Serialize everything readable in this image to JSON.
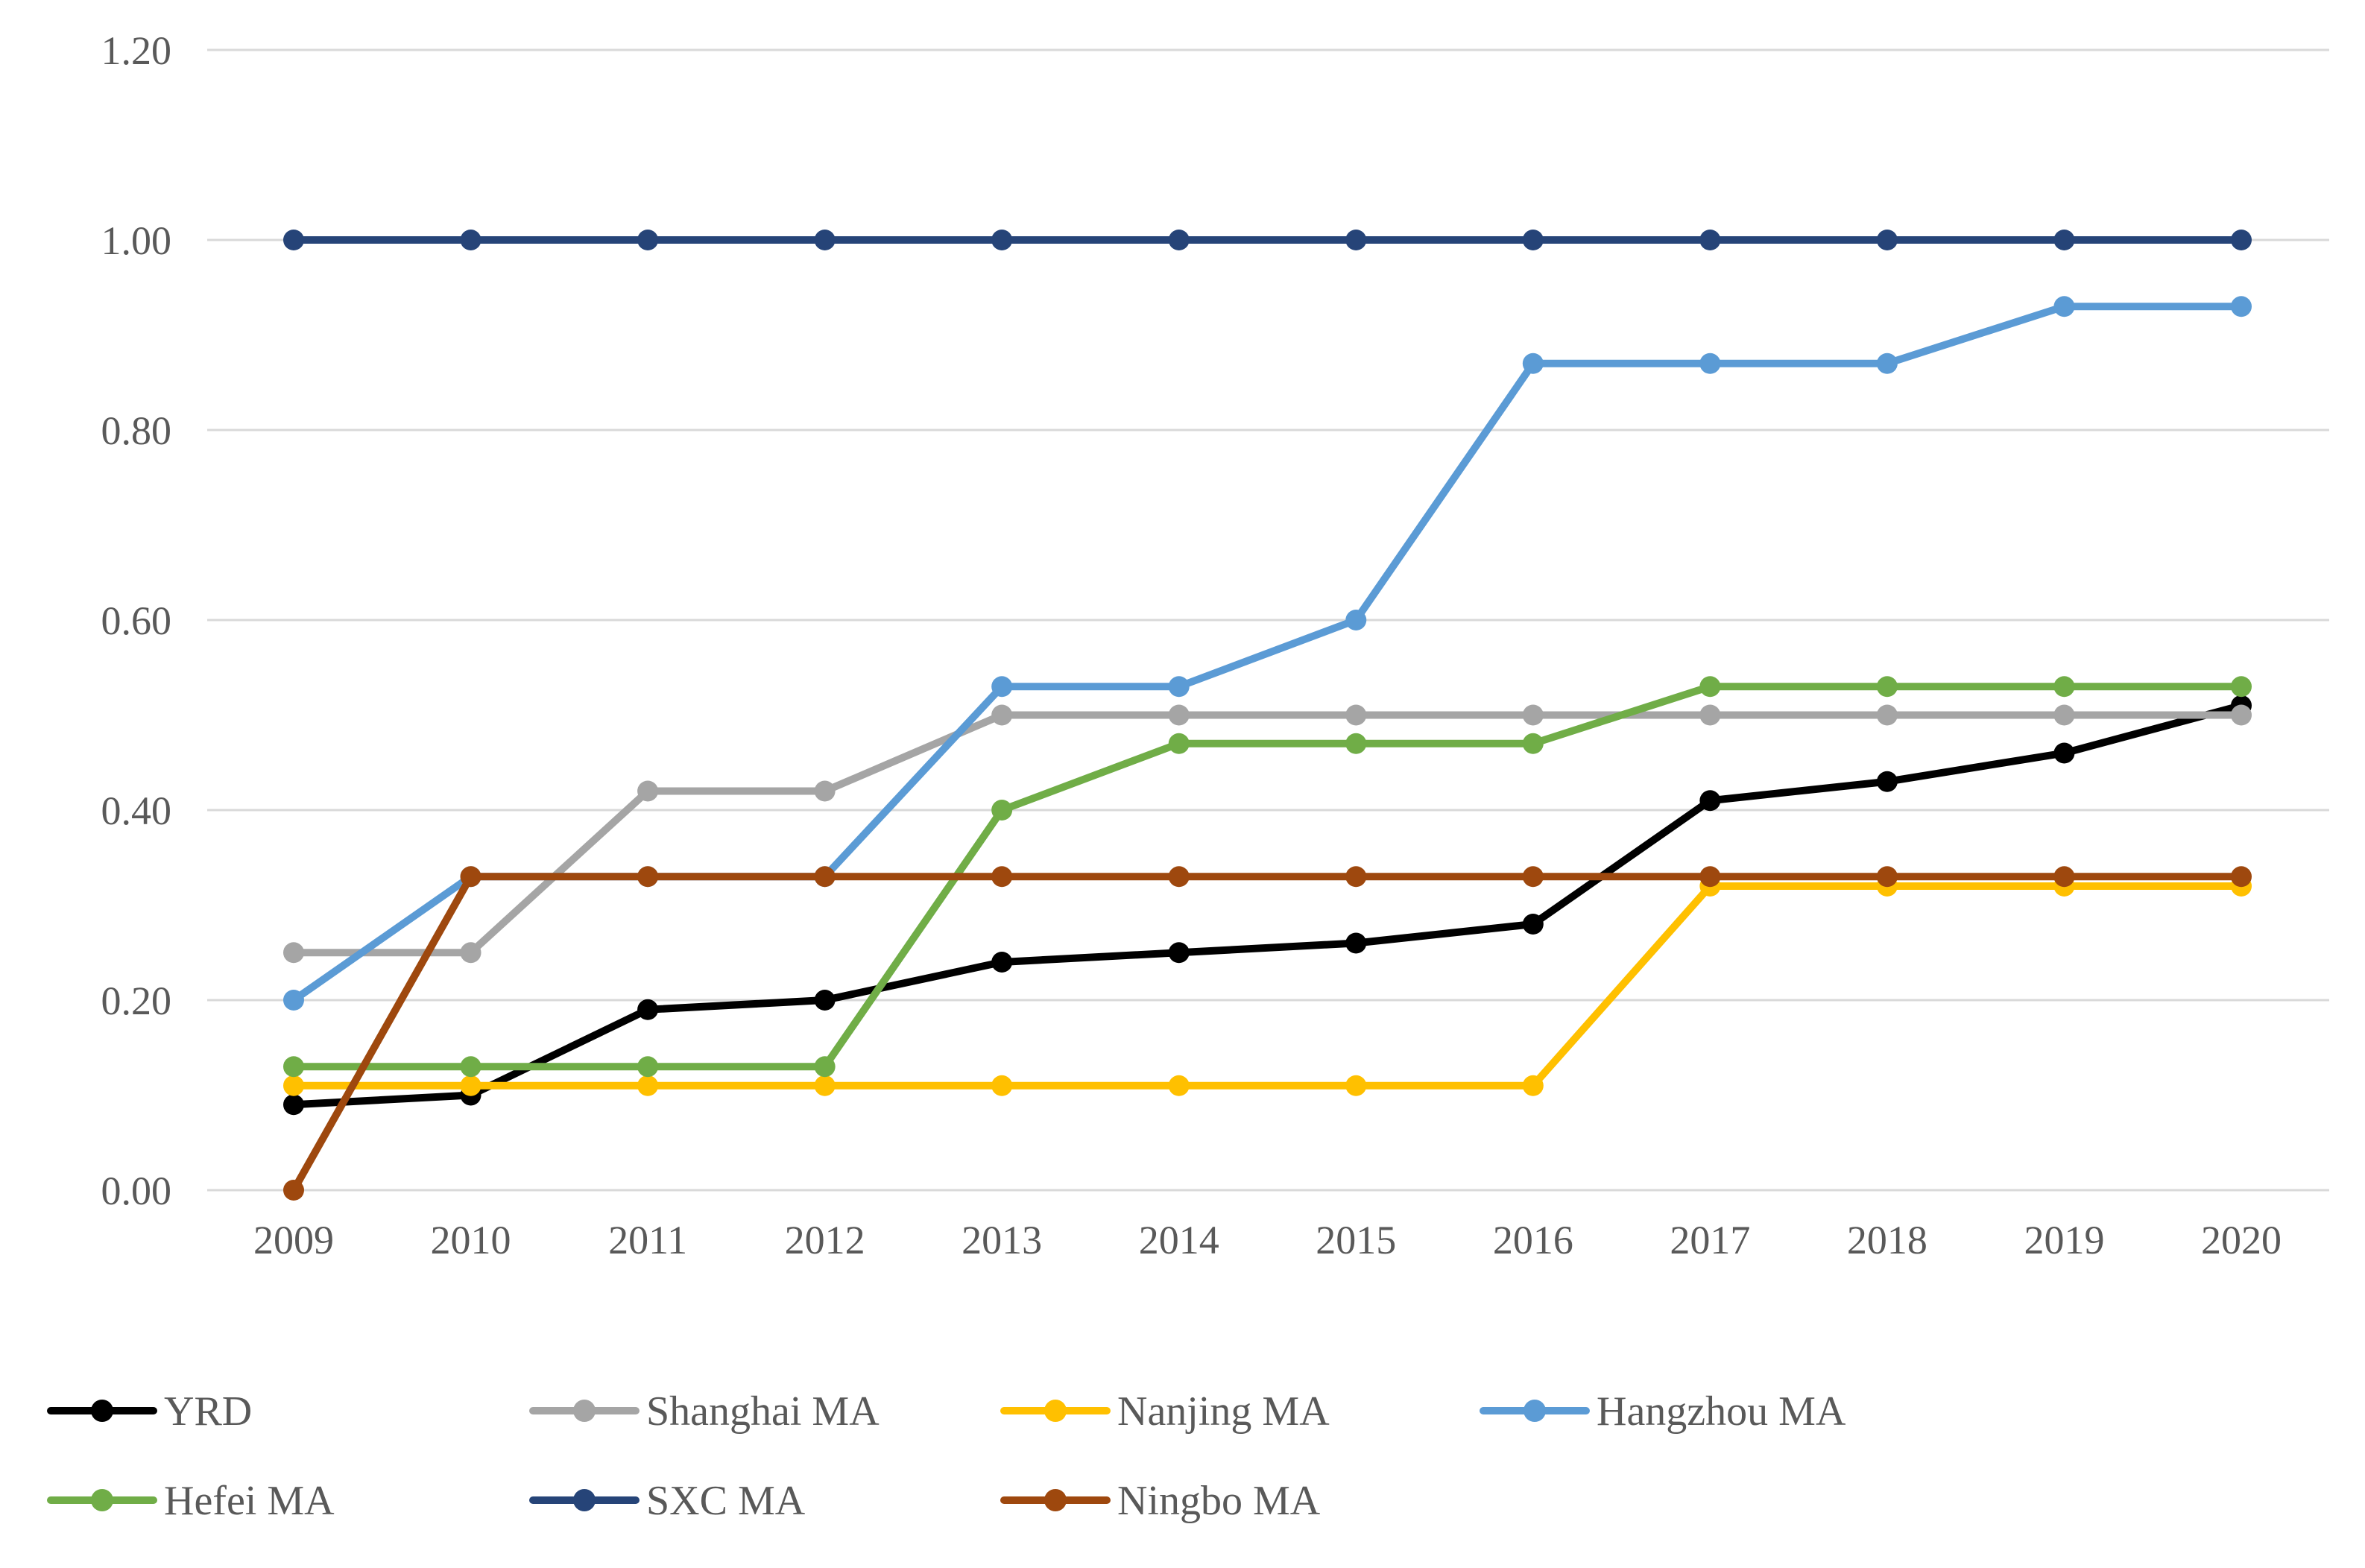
{
  "chart_data": {
    "type": "line",
    "title": "",
    "xlabel": "",
    "ylabel": "",
    "categories": [
      "2009",
      "2010",
      "2011",
      "2012",
      "2013",
      "2014",
      "2015",
      "2016",
      "2017",
      "2018",
      "2019",
      "2020"
    ],
    "series": [
      {
        "name": "YRD",
        "color": "#000000",
        "marker": "circle",
        "values": [
          0.09,
          0.1,
          0.19,
          0.2,
          0.24,
          0.25,
          0.26,
          0.28,
          0.41,
          0.43,
          0.46,
          0.51
        ]
      },
      {
        "name": "Shanghai MA",
        "color": "#A5A5A5",
        "marker": "circle",
        "values": [
          0.25,
          0.25,
          0.42,
          0.42,
          0.5,
          0.5,
          0.5,
          0.5,
          0.5,
          0.5,
          0.5,
          0.5
        ]
      },
      {
        "name": "Nanjing MA",
        "color": "#FFC000",
        "marker": "circle",
        "values": [
          0.11,
          0.11,
          0.11,
          0.11,
          0.11,
          0.11,
          0.11,
          0.11,
          0.32,
          0.32,
          0.32,
          0.32
        ]
      },
      {
        "name": "Hangzhou MA",
        "color": "#5B9BD5",
        "marker": "circle",
        "values": [
          0.2,
          0.33,
          0.33,
          0.33,
          0.53,
          0.53,
          0.6,
          0.87,
          0.87,
          0.87,
          0.93,
          0.93
        ]
      },
      {
        "name": "Hefei MA",
        "color": "#70AD47",
        "marker": "circle",
        "values": [
          0.13,
          0.13,
          0.13,
          0.13,
          0.4,
          0.47,
          0.47,
          0.47,
          0.53,
          0.53,
          0.53,
          0.53
        ]
      },
      {
        "name": "SXC MA",
        "color": "#264478",
        "marker": "circle",
        "values": [
          1.0,
          1.0,
          1.0,
          1.0,
          1.0,
          1.0,
          1.0,
          1.0,
          1.0,
          1.0,
          1.0,
          1.0
        ]
      },
      {
        "name": "Ningbo MA",
        "color": "#9E480E",
        "marker": "circle",
        "values": [
          0.0,
          0.33,
          0.33,
          0.33,
          0.33,
          0.33,
          0.33,
          0.33,
          0.33,
          0.33,
          0.33,
          0.33
        ]
      }
    ],
    "y_axis": {
      "min": 0.0,
      "max": 1.2,
      "tick_step": 0.2,
      "tick_labels": [
        "0.00",
        "0.20",
        "0.40",
        "0.60",
        "0.80",
        "1.00",
        "1.20"
      ]
    },
    "x_axis": {
      "tick_labels": [
        "2009",
        "2010",
        "2011",
        "2012",
        "2013",
        "2014",
        "2015",
        "2016",
        "2017",
        "2018",
        "2019",
        "2020"
      ]
    },
    "grid": "horizontal",
    "grid_color": "#D9D9D9",
    "label_color": "#595959",
    "background": "#FFFFFF",
    "legend": {
      "position": "bottom",
      "rows": [
        [
          "YRD",
          "Shanghai MA",
          "Nanjing MA",
          "Hangzhou MA"
        ],
        [
          "Hefei MA",
          "SXC MA",
          "Ningbo MA"
        ]
      ]
    }
  }
}
